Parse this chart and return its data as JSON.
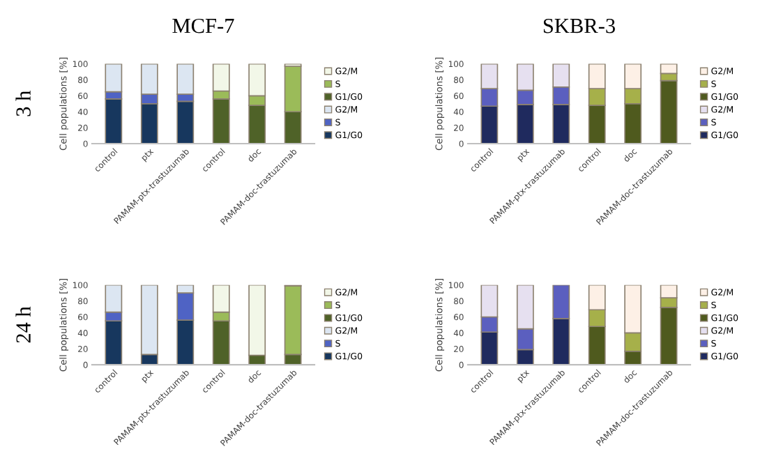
{
  "chart_data": [
    {
      "type": "bar",
      "title": "MCF-7",
      "annotations": [
        "3 h"
      ],
      "ylabel": "Cell populations [%]",
      "stacked": true,
      "legend": "right",
      "ylim": [
        0,
        100
      ],
      "yticks": [
        0,
        20,
        40,
        60,
        80,
        100
      ],
      "categories": [
        "control",
        "ptx",
        "PAMAM-ptx-trastuzumab",
        "control",
        "doc",
        "PAMAM-doc-trastuzumab"
      ],
      "series": [
        {
          "name": "G1/G0",
          "color": "#17375e",
          "values": [
            56,
            50,
            53,
            null,
            null,
            null
          ]
        },
        {
          "name": "S",
          "color": "#4f63c4",
          "values": [
            9,
            12,
            9,
            null,
            null,
            null
          ]
        },
        {
          "name": "G2/M",
          "color": "#dce6f2",
          "values": [
            35,
            38,
            38,
            null,
            null,
            null
          ]
        },
        {
          "name": "G1/G0",
          "color": "#4f6228",
          "values": [
            null,
            null,
            null,
            56,
            48,
            40
          ]
        },
        {
          "name": "S",
          "color": "#9bbb59",
          "values": [
            null,
            null,
            null,
            10,
            12,
            57
          ]
        },
        {
          "name": "G2/M",
          "color": "#f2f7e8",
          "values": [
            null,
            null,
            null,
            34,
            40,
            3
          ]
        }
      ]
    },
    {
      "type": "bar",
      "title": "SKBR-3",
      "ylabel": "Cell populations [%]",
      "stacked": true,
      "legend": "right",
      "ylim": [
        0,
        100
      ],
      "yticks": [
        0,
        20,
        40,
        60,
        80,
        100
      ],
      "categories": [
        "control",
        "ptx",
        "PAMAM-ptx-trastuzumab",
        "control",
        "doc",
        "PAMAM-doc-trastuzumab"
      ],
      "series": [
        {
          "name": "G1/G0",
          "color": "#1f2a5e",
          "values": [
            47,
            49,
            49,
            null,
            null,
            null
          ]
        },
        {
          "name": "S",
          "color": "#5b5fbf",
          "values": [
            22,
            18,
            22,
            null,
            null,
            null
          ]
        },
        {
          "name": "G2/M",
          "color": "#e6e0f0",
          "values": [
            31,
            33,
            29,
            null,
            null,
            null
          ]
        },
        {
          "name": "G1/G0",
          "color": "#4f5a1e",
          "values": [
            null,
            null,
            null,
            48,
            50,
            79
          ]
        },
        {
          "name": "S",
          "color": "#a6b04a",
          "values": [
            null,
            null,
            null,
            21,
            19,
            9
          ]
        },
        {
          "name": "G2/M",
          "color": "#fdf0e6",
          "values": [
            null,
            null,
            null,
            31,
            31,
            12
          ]
        }
      ]
    },
    {
      "type": "bar",
      "annotations": [
        "24 h"
      ],
      "ylabel": "Cell populations [%]",
      "stacked": true,
      "legend": "right",
      "ylim": [
        0,
        100
      ],
      "yticks": [
        0,
        20,
        40,
        60,
        80,
        100
      ],
      "categories": [
        "control",
        "ptx",
        "PAMAM-ptx-trastuzumab",
        "control",
        "doc",
        "PAMAM-doc-trastuzumab"
      ],
      "series": [
        {
          "name": "G1/G0",
          "color": "#17375e",
          "values": [
            55,
            13,
            56,
            null,
            null,
            null
          ]
        },
        {
          "name": "S",
          "color": "#4f63c4",
          "values": [
            11,
            null,
            34,
            null,
            null,
            null
          ]
        },
        {
          "name": "G2/M",
          "color": "#dce6f2",
          "values": [
            34,
            87,
            10,
            null,
            null,
            null
          ]
        },
        {
          "name": "G1/G0",
          "color": "#4f6228",
          "values": [
            null,
            null,
            null,
            55,
            12,
            13
          ]
        },
        {
          "name": "S",
          "color": "#9bbb59",
          "values": [
            null,
            null,
            null,
            11,
            null,
            86
          ]
        },
        {
          "name": "G2/M",
          "color": "#f2f7e8",
          "values": [
            null,
            null,
            null,
            34,
            88,
            1
          ]
        }
      ]
    },
    {
      "type": "bar",
      "ylabel": "Cell populations [%]",
      "stacked": true,
      "legend": "right",
      "ylim": [
        0,
        100
      ],
      "yticks": [
        0,
        20,
        40,
        60,
        80,
        100
      ],
      "categories": [
        "control",
        "ptx",
        "PAMAM-ptx-trastuzumab",
        "control",
        "doc",
        "PAMAM-doc-trastuzumab"
      ],
      "series": [
        {
          "name": "G1/G0",
          "color": "#1f2a5e",
          "values": [
            41,
            19,
            58,
            null,
            null,
            null
          ]
        },
        {
          "name": "S",
          "color": "#5b5fbf",
          "values": [
            19,
            26,
            42,
            null,
            null,
            null
          ]
        },
        {
          "name": "G2/M",
          "color": "#e6e0f0",
          "values": [
            40,
            55,
            null,
            null,
            null,
            null
          ]
        },
        {
          "name": "G1/G0",
          "color": "#4f5a1e",
          "values": [
            null,
            null,
            null,
            48,
            17,
            72
          ]
        },
        {
          "name": "S",
          "color": "#a6b04a",
          "values": [
            null,
            null,
            null,
            21,
            23,
            12
          ]
        },
        {
          "name": "G2/M",
          "color": "#fdf0e6",
          "values": [
            null,
            null,
            null,
            31,
            60,
            16
          ]
        }
      ]
    }
  ]
}
